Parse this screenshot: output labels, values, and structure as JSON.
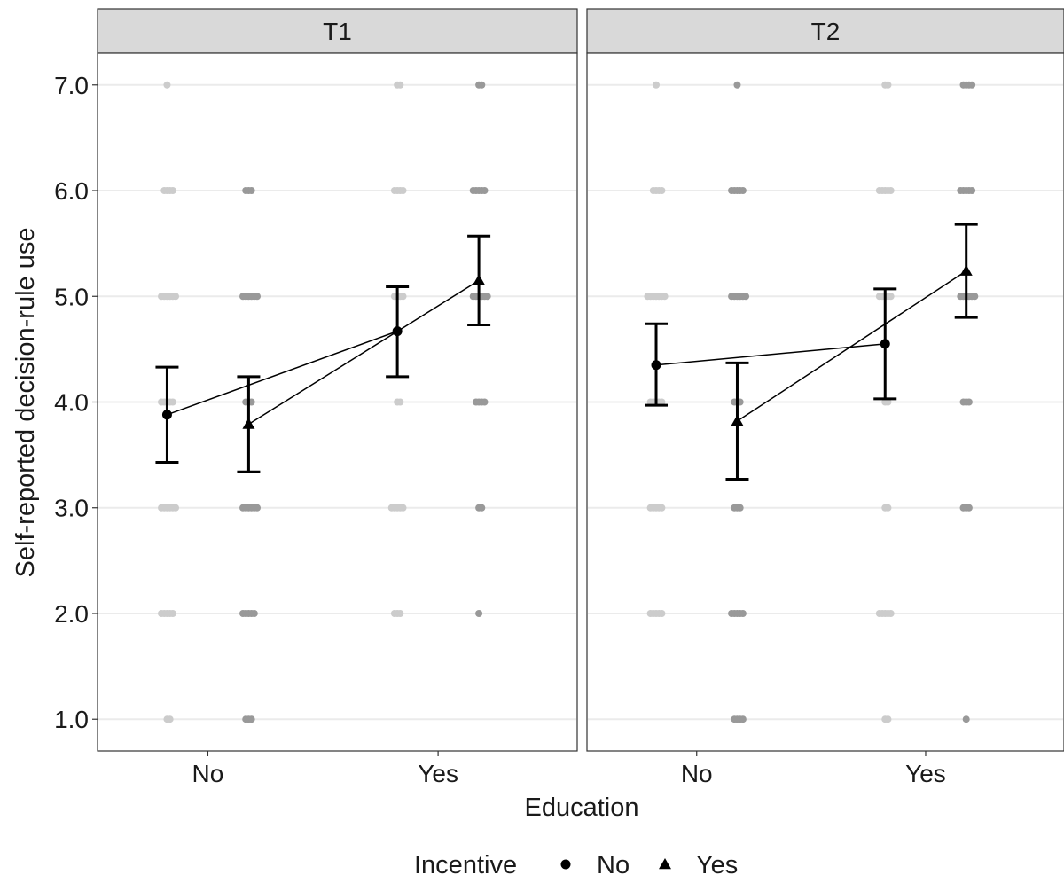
{
  "chart_data": {
    "type": "scatter",
    "panels": [
      {
        "label": "T1",
        "means": [
          {
            "education": "No",
            "incentive": "No",
            "mean": 3.88,
            "lower": 3.43,
            "upper": 4.33
          },
          {
            "education": "No",
            "incentive": "Yes",
            "mean": 3.79,
            "lower": 3.34,
            "upper": 4.24
          },
          {
            "education": "Yes",
            "incentive": "No",
            "mean": 4.67,
            "lower": 4.24,
            "upper": 5.09
          },
          {
            "education": "Yes",
            "incentive": "Yes",
            "mean": 5.15,
            "lower": 4.73,
            "upper": 5.57
          }
        ],
        "raw_points": [
          {
            "education": "No",
            "incentive": "No",
            "values": [
              7,
              6,
              6,
              6,
              6,
              5,
              5,
              5,
              5,
              5,
              5,
              4,
              4,
              4,
              4,
              4,
              3,
              3,
              3,
              3,
              3,
              3,
              2,
              2,
              2,
              2,
              2,
              1,
              1
            ]
          },
          {
            "education": "No",
            "incentive": "Yes",
            "values": [
              6,
              6,
              6,
              5,
              5,
              5,
              5,
              5,
              5,
              4,
              4,
              4,
              3,
              3,
              3,
              3,
              3,
              3,
              2,
              2,
              2,
              2,
              2,
              1,
              1,
              1
            ]
          },
          {
            "education": "Yes",
            "incentive": "No",
            "values": [
              7,
              7,
              6,
              6,
              6,
              6,
              5,
              5,
              5,
              5,
              4,
              4,
              3,
              3,
              3,
              3,
              3,
              2,
              2,
              2
            ]
          },
          {
            "education": "Yes",
            "incentive": "Yes",
            "values": [
              7,
              7,
              6,
              6,
              6,
              6,
              6,
              5,
              5,
              5,
              5,
              5,
              5,
              4,
              4,
              4,
              4,
              3,
              3,
              2
            ]
          }
        ]
      },
      {
        "label": "T2",
        "means": [
          {
            "education": "No",
            "incentive": "No",
            "mean": 4.35,
            "lower": 3.97,
            "upper": 4.74
          },
          {
            "education": "No",
            "incentive": "Yes",
            "mean": 3.82,
            "lower": 3.27,
            "upper": 4.37
          },
          {
            "education": "Yes",
            "incentive": "No",
            "mean": 4.55,
            "lower": 4.03,
            "upper": 5.07
          },
          {
            "education": "Yes",
            "incentive": "Yes",
            "mean": 5.24,
            "lower": 4.8,
            "upper": 5.68
          }
        ],
        "raw_points": [
          {
            "education": "No",
            "incentive": "No",
            "values": [
              7,
              6,
              6,
              6,
              6,
              5,
              5,
              5,
              5,
              5,
              5,
              5,
              4,
              4,
              4,
              4,
              4,
              3,
              3,
              3,
              3,
              3,
              2,
              2,
              2,
              2,
              2
            ]
          },
          {
            "education": "No",
            "incentive": "Yes",
            "values": [
              7,
              6,
              6,
              6,
              6,
              6,
              5,
              5,
              5,
              5,
              5,
              5,
              4,
              4,
              4,
              3,
              3,
              3,
              2,
              2,
              2,
              2,
              2,
              1,
              1,
              1,
              1
            ]
          },
          {
            "education": "Yes",
            "incentive": "No",
            "values": [
              7,
              7,
              6,
              6,
              6,
              6,
              6,
              5,
              5,
              5,
              5,
              5,
              4,
              4,
              3,
              3,
              2,
              2,
              2,
              2,
              2,
              1,
              1
            ]
          },
          {
            "education": "Yes",
            "incentive": "Yes",
            "values": [
              7,
              7,
              7,
              7,
              6,
              6,
              6,
              6,
              6,
              5,
              5,
              5,
              5,
              5,
              5,
              4,
              4,
              4,
              3,
              3,
              3,
              1
            ]
          }
        ]
      }
    ],
    "categories": [
      "No",
      "Yes"
    ],
    "xlabel": "Education",
    "ylabel": "Self-reported decision-rule use",
    "yticks": [
      1.0,
      2.0,
      3.0,
      4.0,
      5.0,
      6.0,
      7.0
    ],
    "ylim": [
      0.7,
      7.3
    ],
    "legend": {
      "title": "Incentive",
      "position": "bottom",
      "entries": [
        {
          "name": "No",
          "shape": "circle"
        },
        {
          "name": "Yes",
          "shape": "triangle"
        }
      ]
    },
    "raw_point_colors": {
      "No": "#cccccc",
      "Yes": "#999999"
    },
    "grid": true
  }
}
